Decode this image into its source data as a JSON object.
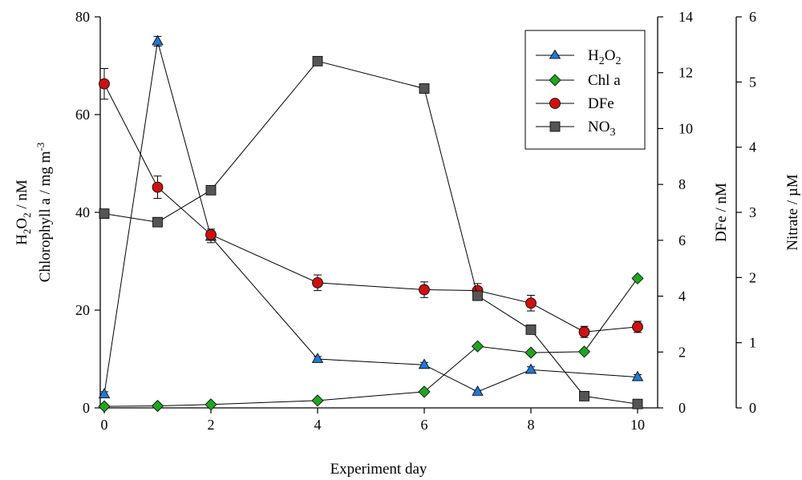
{
  "chart_data": {
    "type": "line",
    "xlabel": "Experiment day",
    "xlim": [
      0,
      10
    ],
    "x_ticks": [
      "0",
      "2",
      "4",
      "6",
      "8",
      "10"
    ],
    "y_left": {
      "label_line1": "H2O2 / nM",
      "label_line2": "Chlorophyll a / mg m-3",
      "ylim": [
        0,
        80
      ],
      "ticks": [
        "0",
        "20",
        "40",
        "60",
        "80"
      ]
    },
    "y_right1": {
      "label": "DFe / nM",
      "ylim": [
        0,
        14
      ],
      "ticks": [
        "0",
        "2",
        "4",
        "6",
        "8",
        "10",
        "12",
        "14"
      ]
    },
    "y_right2": {
      "label": "Nitrate / µM",
      "ylim": [
        0,
        6
      ],
      "ticks": [
        "0",
        "1",
        "2",
        "3",
        "4",
        "5",
        "6"
      ]
    },
    "series": [
      {
        "name": "H2O2",
        "axis": "left",
        "marker": "triangle",
        "color": "#1f78d8",
        "x": [
          0,
          1,
          2,
          4,
          6,
          7,
          8,
          10
        ],
        "y": [
          2.8,
          75.0,
          35.0,
          10.0,
          8.8,
          3.3,
          7.8,
          6.3
        ],
        "err": [
          0.5,
          1.0,
          1.2,
          0.5,
          0.5,
          0.3,
          0.6,
          0.5
        ]
      },
      {
        "name": "Chl a",
        "axis": "left",
        "marker": "diamond",
        "color": "#1fa51f",
        "x": [
          0,
          1,
          2,
          4,
          6,
          7,
          8,
          9,
          10
        ],
        "y": [
          0.3,
          0.4,
          0.7,
          1.5,
          3.3,
          12.6,
          11.3,
          11.5,
          26.5
        ],
        "err": [
          0,
          0,
          0,
          0,
          0,
          0,
          0,
          0,
          0
        ]
      },
      {
        "name": "DFe",
        "axis": "right1",
        "marker": "circle",
        "color": "#cc1111",
        "x": [
          0,
          1,
          2,
          4,
          6,
          7,
          8,
          9,
          10
        ],
        "y": [
          11.6,
          7.9,
          6.2,
          4.48,
          4.23,
          4.2,
          3.75,
          2.72,
          2.9
        ],
        "err": [
          0.55,
          0.4,
          0.2,
          0.28,
          0.28,
          0.25,
          0.28,
          0.2,
          0.2
        ]
      },
      {
        "name": "NO3",
        "axis": "right2",
        "marker": "square",
        "color": "#555555",
        "x": [
          0,
          1,
          2,
          4,
          6,
          7,
          8,
          9,
          10
        ],
        "y": [
          2.98,
          2.85,
          3.34,
          5.32,
          4.9,
          1.72,
          1.2,
          0.18,
          0.06
        ],
        "err": [
          0,
          0,
          0,
          0,
          0,
          0,
          0,
          0,
          0
        ]
      }
    ],
    "legend_position": "top-right",
    "grid": false
  }
}
